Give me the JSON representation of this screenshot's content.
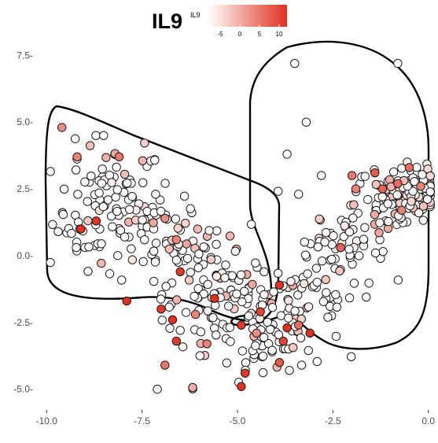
{
  "chart_data": {
    "type": "scatter",
    "title": "IL9",
    "legend": {
      "title": "IL9",
      "placement": "top",
      "ticks": [
        "-5",
        "0",
        "5",
        "10"
      ],
      "range": [
        -8,
        12
      ],
      "colors": [
        "#ffffff",
        "#e0301e"
      ]
    },
    "xlim": [
      -10.5,
      0.15
    ],
    "ylim": [
      -5.6,
      8.1
    ],
    "x_ticks": [
      {
        "value": -10.0,
        "label": "-10.0"
      },
      {
        "value": -7.5,
        "label": "-7.5"
      },
      {
        "value": -5.0,
        "label": "-5.0"
      },
      {
        "value": -2.5,
        "label": "-2.5"
      },
      {
        "value": 0.0,
        "label": "0.0"
      }
    ],
    "y_ticks": [
      {
        "value": 7.5,
        "label": "7.5-"
      },
      {
        "value": 5.0,
        "label": "5.0-"
      },
      {
        "value": 2.5,
        "label": "2.5-"
      },
      {
        "value": 0.0,
        "label": "0.0-"
      },
      {
        "value": -2.5,
        "label": "-2.5-"
      },
      {
        "value": -5.0,
        "label": "-5.0-"
      }
    ],
    "grid": false,
    "highlighted_points": [
      {
        "x": -9.6,
        "y": 4.8,
        "v": 3
      },
      {
        "x": -9.2,
        "y": 3.7,
        "v": 4
      },
      {
        "x": -9.1,
        "y": 1.0,
        "v": 12
      },
      {
        "x": -8.7,
        "y": 1.3,
        "v": 11
      },
      {
        "x": -8.1,
        "y": 3.7,
        "v": 5
      },
      {
        "x": -7.9,
        "y": -1.7,
        "v": 12
      },
      {
        "x": -6.5,
        "y": -0.6,
        "v": 11
      },
      {
        "x": -7.0,
        "y": -2.0,
        "v": 11
      },
      {
        "x": -6.7,
        "y": -2.4,
        "v": 12
      },
      {
        "x": -6.6,
        "y": 0.6,
        "v": 4
      },
      {
        "x": -6.9,
        "y": 1.4,
        "v": 3
      },
      {
        "x": -6.1,
        "y": -2.2,
        "v": 4
      },
      {
        "x": -5.6,
        "y": -1.6,
        "v": 12
      },
      {
        "x": -6.6,
        "y": -3.2,
        "v": 11
      },
      {
        "x": -6.9,
        "y": -4.1,
        "v": 5
      },
      {
        "x": -5.8,
        "y": -3.3,
        "v": 4
      },
      {
        "x": -4.9,
        "y": -2.6,
        "v": 11
      },
      {
        "x": -4.9,
        "y": -4.9,
        "v": 12
      },
      {
        "x": -4.8,
        "y": -4.4,
        "v": 11
      },
      {
        "x": -4.4,
        "y": -2.1,
        "v": 10
      },
      {
        "x": -3.9,
        "y": -1.1,
        "v": 12
      },
      {
        "x": -3.7,
        "y": -2.7,
        "v": 12
      },
      {
        "x": -3.8,
        "y": -3.2,
        "v": 10
      },
      {
        "x": -3.4,
        "y": -2.6,
        "v": 6
      },
      {
        "x": -3.1,
        "y": -2.9,
        "v": 12
      },
      {
        "x": -2.0,
        "y": 3.0,
        "v": 5
      },
      {
        "x": -1.4,
        "y": 3.1,
        "v": 8
      },
      {
        "x": -1.2,
        "y": 2.5,
        "v": 7
      },
      {
        "x": -0.8,
        "y": 2.7,
        "v": 6
      },
      {
        "x": -0.5,
        "y": 3.3,
        "v": 6
      },
      {
        "x": -2.3,
        "y": 0.3,
        "v": 7
      },
      {
        "x": -1.9,
        "y": 2.5,
        "v": 4
      },
      {
        "x": -0.2,
        "y": 2.6,
        "v": 4
      },
      {
        "x": -0.7,
        "y": 1.7,
        "v": 4
      },
      {
        "x": -3.9,
        "y": -4.0,
        "v": 8
      },
      {
        "x": -4.5,
        "y": -2.9,
        "v": 3
      }
    ]
  }
}
